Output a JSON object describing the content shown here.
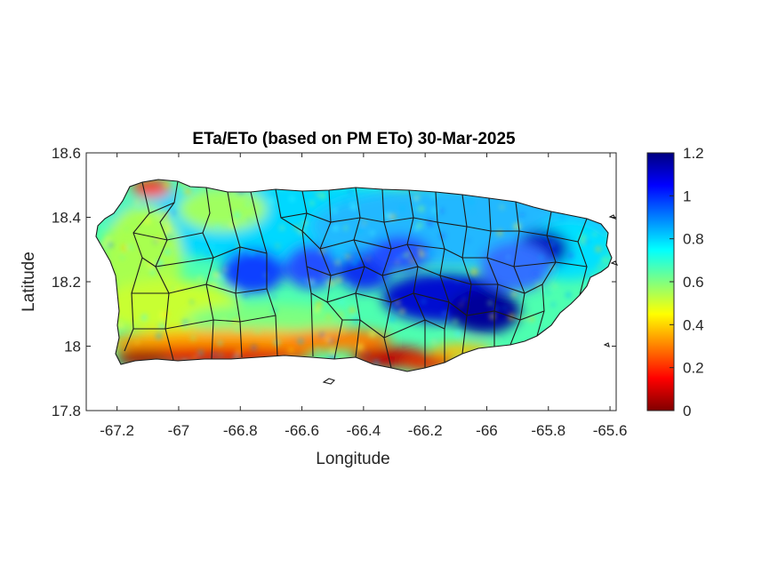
{
  "chart_data": {
    "type": "heatmap",
    "title": "ETa/ETo (based on PM ETo) 30-Mar-2025",
    "xlabel": "Longitude",
    "ylabel": "Latitude",
    "xlim": [
      -67.3,
      -65.58
    ],
    "ylim": [
      17.8,
      18.6
    ],
    "x_ticks": [
      -67.2,
      -67,
      -66.8,
      -66.6,
      -66.4,
      -66.2,
      -66,
      -65.8,
      -65.6
    ],
    "x_tick_labels": [
      "-67.2",
      "-67",
      "-66.8",
      "-66.6",
      "-66.4",
      "-66.2",
      "-66",
      "-65.8",
      "-65.6"
    ],
    "y_ticks": [
      17.8,
      18,
      18.2,
      18.4,
      18.6
    ],
    "y_tick_labels": [
      "17.8",
      "18",
      "18.2",
      "18.4",
      "18.6"
    ],
    "colorbar": {
      "colormap": "jet-reversed",
      "clim": [
        0,
        1.2
      ],
      "ticks": [
        0,
        0.2,
        0.4,
        0.6,
        0.8,
        1,
        1.2
      ],
      "tick_labels": [
        "0",
        "0.2",
        "0.4",
        "0.6",
        "0.8",
        "1",
        "1.2"
      ],
      "colors": [
        "#800000",
        "#ff0000",
        "#ff8000",
        "#ffff00",
        "#80ff80",
        "#00ffff",
        "#0080ff",
        "#0000ff",
        "#000080"
      ]
    },
    "grid": false,
    "box": true
  }
}
